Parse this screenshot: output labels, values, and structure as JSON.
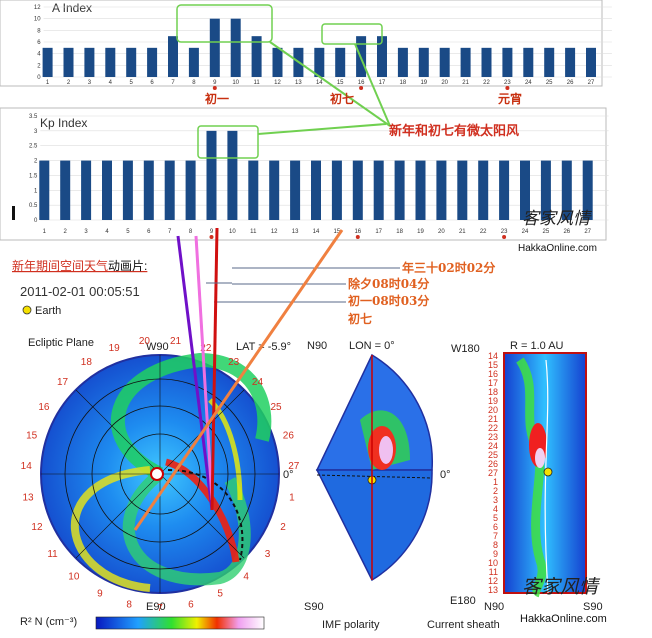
{
  "chart_data": [
    {
      "type": "bar",
      "title": "A Index",
      "categories": [
        "1",
        "2",
        "3",
        "4",
        "5",
        "6",
        "7",
        "8",
        "9",
        "10",
        "11",
        "12",
        "13",
        "14",
        "15",
        "16",
        "17",
        "18",
        "19",
        "20",
        "21",
        "22",
        "23",
        "24",
        "25",
        "26",
        "27"
      ],
      "values": [
        5,
        5,
        5,
        5,
        5,
        5,
        7,
        5,
        10,
        10,
        7,
        5,
        5,
        5,
        5,
        7,
        7,
        5,
        5,
        5,
        5,
        5,
        5,
        5,
        5,
        5,
        5
      ],
      "ylim": [
        0,
        12
      ],
      "yticks": [
        "0",
        "2",
        "4",
        "6",
        "8",
        "10",
        "12"
      ],
      "bar_color": "#1a4a86"
    },
    {
      "type": "bar",
      "title": "Kp Index",
      "categories": [
        "1",
        "2",
        "3",
        "4",
        "5",
        "6",
        "7",
        "8",
        "9",
        "10",
        "11",
        "12",
        "13",
        "14",
        "15",
        "16",
        "17",
        "18",
        "19",
        "20",
        "21",
        "22",
        "23",
        "24",
        "25",
        "26",
        "27"
      ],
      "values": [
        2,
        2,
        2,
        2,
        2,
        2,
        2,
        2,
        3,
        3,
        2,
        2,
        2,
        2,
        2,
        2,
        2,
        2,
        2,
        2,
        2,
        2,
        2,
        2,
        2,
        2,
        2
      ],
      "ylim": [
        0,
        3.5
      ],
      "yticks": [
        "0",
        "0.5",
        "1",
        "1.5",
        "2",
        "2.5",
        "3",
        "3.5"
      ],
      "bar_color": "#1a4a86"
    }
  ],
  "annotations": {
    "chu_yi": "初一",
    "chu_qi": "初七",
    "yuan_xiao": "元宵",
    "callout": "新年和初七有微太阳风",
    "watermark": "客家风情",
    "watermark_url": "HakkaOnline.com",
    "anim_label_red": "新年期间空间天气",
    "anim_label_black": "动画片:",
    "time1": "年三十02时02分",
    "time2": "除夕08时04分",
    "time3": "初一08时03分",
    "time4": "初七"
  },
  "enlil": {
    "datetime": "2011-02-01  00:05:51",
    "earth_label": "Earth",
    "ecliptic_label": "Ecliptic Plane",
    "w90": "W90",
    "e90": "E90",
    "lat_label": "LAT = -5.9°",
    "zero": "0°",
    "n90": "N90",
    "s90": "S90",
    "lon_label": "LON = 0°",
    "w180": "W180",
    "e180": "E180",
    "r_label": "R = 1.0 AU",
    "imf": "IMF polarity",
    "sheath": "Current sheath",
    "colorbar": "R² N (cm⁻³)",
    "dial_numbers": [
      "19",
      "20",
      "21",
      "22",
      "23",
      "24",
      "25",
      "26",
      "27",
      "1",
      "2",
      "3",
      "4",
      "5",
      "6",
      "7",
      "8",
      "9",
      "10",
      "11",
      "12",
      "13",
      "14",
      "15",
      "16",
      "17",
      "18"
    ],
    "strip_numbers": [
      "14",
      "15",
      "16",
      "17",
      "18",
      "19",
      "20",
      "21",
      "22",
      "23",
      "24",
      "25",
      "26",
      "27",
      "1",
      "2",
      "3",
      "4",
      "5",
      "6",
      "7",
      "8",
      "9",
      "10",
      "11",
      "12",
      "13"
    ]
  },
  "colors": {
    "bar": "#1a4a86",
    "annotation_red": "#d83010",
    "green": "#66d040",
    "purple": "#7a10c8",
    "pink": "#f070e0",
    "orange": "#f08040",
    "dark_red": "#c01010"
  }
}
